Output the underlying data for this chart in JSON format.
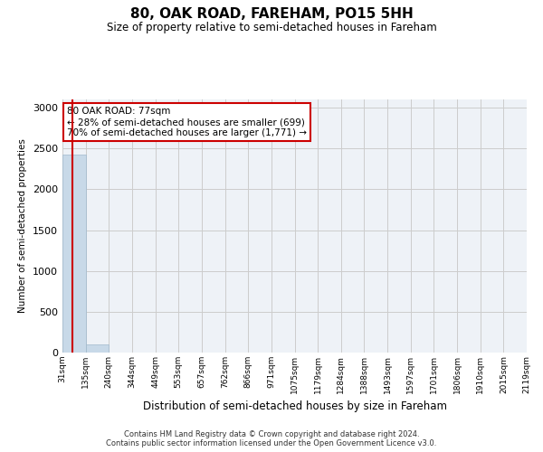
{
  "title": "80, OAK ROAD, FAREHAM, PO15 5HH",
  "subtitle": "Size of property relative to semi-detached houses in Fareham",
  "xlabel": "Distribution of semi-detached houses by size in Fareham",
  "ylabel": "Number of semi-detached properties",
  "bin_edges": [
    31,
    135,
    240,
    344,
    449,
    553,
    657,
    762,
    866,
    971,
    1075,
    1179,
    1284,
    1388,
    1493,
    1597,
    1701,
    1806,
    1910,
    2015,
    2119
  ],
  "bar_heights": [
    2420,
    100,
    0,
    0,
    0,
    0,
    0,
    0,
    0,
    0,
    0,
    0,
    0,
    0,
    0,
    0,
    0,
    0,
    0,
    0
  ],
  "bar_color": "#c8d9e8",
  "bar_edgecolor": "#a0b8cc",
  "property_sqm": 77,
  "annotation_title": "80 OAK ROAD: 77sqm",
  "annotation_line1": "← 28% of semi-detached houses are smaller (699)",
  "annotation_line2": "70% of semi-detached houses are larger (1,771) →",
  "annotation_box_color": "#cc0000",
  "vline_color": "#cc0000",
  "ylim": [
    0,
    3100
  ],
  "yticks": [
    0,
    500,
    1000,
    1500,
    2000,
    2500,
    3000
  ],
  "grid_color": "#cccccc",
  "background_color": "#eef2f7",
  "footer_line1": "Contains HM Land Registry data © Crown copyright and database right 2024.",
  "footer_line2": "Contains public sector information licensed under the Open Government Licence v3.0."
}
